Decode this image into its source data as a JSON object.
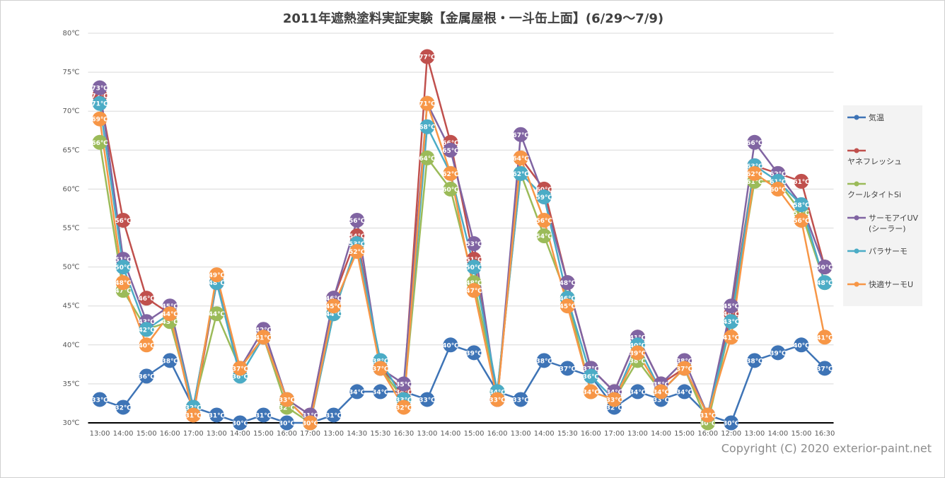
{
  "chart_data": {
    "type": "line",
    "title": "2011年遮熱塗料実証実験【金属屋根・一斗缶上面】(6/29～7/9)",
    "copyright": "Copyright (C) 2020 exterior-paint.net",
    "categories": [
      "13:00",
      "14:00",
      "15:00",
      "16:00",
      "17:00",
      "13:00",
      "14:00",
      "15:00",
      "16:00",
      "17:00",
      "13:00",
      "14:30",
      "15:30",
      "16:30",
      "13:00",
      "14:00",
      "15:00",
      "16:00",
      "13:00",
      "14:00",
      "15:30",
      "16:00",
      "17:00",
      "13:00",
      "14:00",
      "15:00",
      "16:00",
      "12:00",
      "13:00",
      "14:00",
      "15:00",
      "16:30"
    ],
    "ylim": [
      30,
      80
    ],
    "yticks": [
      {
        "value": 30,
        "label": "30℃"
      },
      {
        "value": 35,
        "label": "35℃"
      },
      {
        "value": 40,
        "label": "40℃"
      },
      {
        "value": 45,
        "label": "45℃"
      },
      {
        "value": 50,
        "label": "50℃"
      },
      {
        "value": 55,
        "label": "55℃"
      },
      {
        "value": 60,
        "label": "60℃"
      },
      {
        "value": 65,
        "label": "65℃"
      },
      {
        "value": 70,
        "label": "70℃"
      },
      {
        "value": 75,
        "label": "75℃"
      },
      {
        "value": 80,
        "label": "80℃"
      }
    ],
    "grid": true,
    "legend": "right",
    "series": [
      {
        "name": "気温",
        "color": "#3e74b6",
        "values": [
          33,
          32,
          36,
          38,
          32,
          31,
          30,
          31,
          30,
          30,
          31,
          34,
          34,
          34,
          33,
          40,
          39,
          34,
          33,
          38,
          37,
          36,
          32,
          34,
          33,
          34,
          31,
          30,
          38,
          39,
          40,
          37
        ],
        "value_labels": [
          "33℃",
          "32℃",
          "36℃",
          "38℃",
          "32℃",
          "31℃",
          "30℃",
          "31℃",
          "30℃",
          "30℃",
          "31℃",
          "34℃",
          "34℃",
          "34℃",
          "33℃",
          "40℃",
          "39℃",
          "34℃",
          "33℃",
          "38℃",
          "37℃",
          "36℃",
          "32℃",
          "34℃",
          "33℃",
          "34℃",
          "31℃",
          "30℃",
          "38℃",
          "39℃",
          "40℃",
          "37℃"
        ]
      },
      {
        "name": "ヤネフレッシュ",
        "color": "#c0504d",
        "values": [
          72,
          56,
          46,
          44,
          31,
          48,
          37,
          41,
          33,
          31,
          46,
          54,
          37,
          34,
          77,
          66,
          51,
          33,
          64,
          60,
          48,
          37,
          34,
          41,
          35,
          37,
          31,
          44,
          63,
          62,
          61,
          50
        ],
        "value_labels": [
          "72℃",
          "56℃",
          "46℃",
          "44℃",
          "31℃",
          "48℃",
          "37℃",
          "41℃",
          "33℃",
          "31℃",
          "46℃",
          "54℃",
          "37℃",
          "34℃",
          "77℃",
          "66℃",
          "51℃",
          "33℃",
          "64℃",
          "60℃",
          "48℃",
          "37℃",
          "34℃",
          "41℃",
          "35℃",
          "37℃",
          "31℃",
          "44℃",
          "63℃",
          "62℃",
          "61℃",
          "50℃"
        ]
      },
      {
        "name": "クールタイトSi",
        "color": "#9bbb59",
        "values": [
          66,
          47,
          42,
          43,
          32,
          44,
          37,
          41,
          32,
          30,
          44,
          53,
          37,
          33,
          64,
          60,
          48,
          34,
          62,
          54,
          46,
          34,
          33,
          38,
          34,
          37,
          30,
          43,
          61,
          61,
          57,
          48
        ],
        "value_labels": [
          "66℃",
          "47℃",
          "42℃",
          "43℃",
          "32℃",
          "44℃",
          "37℃",
          "41℃",
          "32℃",
          "30℃",
          "44℃",
          "53℃",
          "37℃",
          "33℃",
          "64℃",
          "60℃",
          "48℃",
          "34℃",
          "62℃",
          "54℃",
          "46℃",
          "34℃",
          "33℃",
          "38℃",
          "34℃",
          "37℃",
          "30℃",
          "43℃",
          "61℃",
          "61℃",
          "57℃",
          "48℃"
        ]
      },
      {
        "name": "サーモアイUV\n(シーラー)",
        "color": "#8064a2",
        "values": [
          73,
          51,
          43,
          45,
          32,
          48,
          37,
          42,
          33,
          31,
          46,
          56,
          37,
          35,
          71,
          65,
          53,
          33,
          67,
          59,
          48,
          37,
          34,
          41,
          35,
          38,
          31,
          45,
          66,
          62,
          58,
          50
        ],
        "value_labels": [
          "73℃",
          "51℃",
          "43℃",
          "45℃",
          "32℃",
          "48℃",
          "37℃",
          "42℃",
          "33℃",
          "31℃",
          "46℃",
          "56℃",
          "37℃",
          "35℃",
          "71℃",
          "65℃",
          "53℃",
          "33℃",
          "67℃",
          "59℃",
          "48℃",
          "37℃",
          "34℃",
          "41℃",
          "35℃",
          "38℃",
          "31℃",
          "45℃",
          "66℃",
          "62℃",
          "58℃",
          "50℃"
        ]
      },
      {
        "name": "パラサーモ",
        "color": "#4bacc6",
        "values": [
          71,
          50,
          42,
          44,
          32,
          48,
          36,
          41,
          33,
          30,
          44,
          53,
          38,
          33,
          68,
          62,
          50,
          34,
          62,
          59,
          46,
          36,
          33,
          40,
          34,
          37,
          31,
          43,
          63,
          61,
          58,
          48
        ],
        "value_labels": [
          "71℃",
          "50℃",
          "42℃",
          "44℃",
          "32℃",
          "48℃",
          "36℃",
          "41℃",
          "33℃",
          "30℃",
          "44℃",
          "53℃",
          "38℃",
          "33℃",
          "68℃",
          "62℃",
          "50℃",
          "34℃",
          "62℃",
          "59℃",
          "46℃",
          "36℃",
          "33℃",
          "40℃",
          "34℃",
          "37℃",
          "31℃",
          "43℃",
          "63℃",
          "61℃",
          "58℃",
          "48℃"
        ]
      },
      {
        "name": "快適サーモU",
        "color": "#f79646",
        "values": [
          69,
          48,
          40,
          44,
          31,
          49,
          37,
          41,
          33,
          30,
          45,
          52,
          37,
          32,
          71,
          62,
          47,
          33,
          64,
          56,
          45,
          34,
          33,
          39,
          34,
          37,
          31,
          41,
          62,
          60,
          56,
          41
        ],
        "value_labels": [
          "69℃",
          "48℃",
          "40℃",
          "44℃",
          "31℃",
          "49℃",
          "37℃",
          "41℃",
          "33℃",
          "30℃",
          "45℃",
          "52℃",
          "37℃",
          "32℃",
          "71℃",
          "62℃",
          "47℃",
          "33℃",
          "64℃",
          "56℃",
          "45℃",
          "34℃",
          "33℃",
          "39℃",
          "34℃",
          "37℃",
          "31℃",
          "41℃",
          "62℃",
          "60℃",
          "56℃",
          "41℃"
        ]
      }
    ]
  }
}
